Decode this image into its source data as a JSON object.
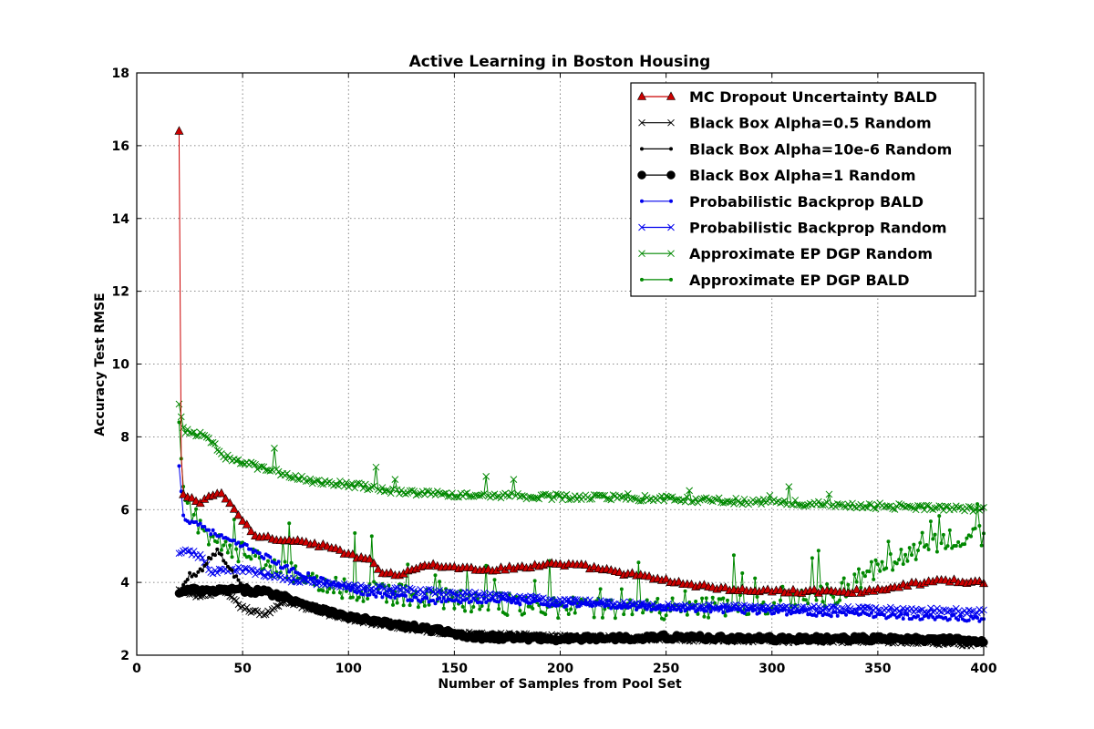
{
  "chart_data": {
    "type": "line",
    "title": "Active Learning in Boston Housing",
    "xlabel": "Number of Samples from Pool Set",
    "ylabel": "Accuracy Test RMSE",
    "xlim": [
      0,
      400
    ],
    "ylim": [
      2,
      18
    ],
    "xticks": [
      0,
      50,
      100,
      150,
      200,
      250,
      300,
      350,
      400
    ],
    "yticks": [
      2,
      4,
      6,
      8,
      10,
      12,
      14,
      16,
      18
    ],
    "grid": true,
    "legend_position": "top-right",
    "x_start": 20,
    "x_end": 400,
    "series": [
      {
        "name": "MC Dropout Uncertainty BALD",
        "color": "#cc0000",
        "marker": "triangle",
        "markerFill": "#cc0000",
        "keyframes": [
          [
            20,
            16.4
          ],
          [
            21,
            7.5
          ],
          [
            22,
            6.4
          ],
          [
            25,
            6.3
          ],
          [
            30,
            6.2
          ],
          [
            35,
            6.4
          ],
          [
            40,
            6.4
          ],
          [
            45,
            6.1
          ],
          [
            50,
            5.7
          ],
          [
            55,
            5.3
          ],
          [
            60,
            5.25
          ],
          [
            80,
            5.1
          ],
          [
            95,
            4.9
          ],
          [
            100,
            4.75
          ],
          [
            110,
            4.6
          ],
          [
            115,
            4.3
          ],
          [
            125,
            4.2
          ],
          [
            135,
            4.5
          ],
          [
            150,
            4.4
          ],
          [
            170,
            4.35
          ],
          [
            195,
            4.5
          ],
          [
            210,
            4.45
          ],
          [
            225,
            4.3
          ],
          [
            240,
            4.15
          ],
          [
            260,
            3.95
          ],
          [
            280,
            3.8
          ],
          [
            300,
            3.75
          ],
          [
            320,
            3.75
          ],
          [
            345,
            3.75
          ],
          [
            360,
            3.9
          ],
          [
            380,
            4.05
          ],
          [
            400,
            4.0
          ]
        ],
        "noise": 0.05
      },
      {
        "name": "Black Box Alpha=0.5 Random",
        "color": "#000000",
        "marker": "x",
        "markerFill": "#000000",
        "keyframes": [
          [
            20,
            3.8
          ],
          [
            25,
            3.7
          ],
          [
            30,
            3.6
          ],
          [
            40,
            3.8
          ],
          [
            50,
            3.3
          ],
          [
            60,
            3.1
          ],
          [
            70,
            3.5
          ],
          [
            80,
            3.3
          ],
          [
            100,
            3.0
          ],
          [
            120,
            2.8
          ],
          [
            150,
            2.6
          ],
          [
            200,
            2.5
          ],
          [
            250,
            2.45
          ],
          [
            300,
            2.4
          ],
          [
            350,
            2.4
          ],
          [
            400,
            2.3
          ]
        ],
        "noise": 0.06
      },
      {
        "name": "Black Box Alpha=10e-6 Random",
        "color": "#000000",
        "marker": "dot",
        "markerFill": "#000000",
        "keyframes": [
          [
            20,
            3.7
          ],
          [
            25,
            4.2
          ],
          [
            30,
            4.3
          ],
          [
            38,
            4.9
          ],
          [
            42,
            4.5
          ],
          [
            50,
            3.9
          ],
          [
            60,
            3.7
          ],
          [
            70,
            3.6
          ],
          [
            80,
            3.4
          ],
          [
            100,
            3.1
          ],
          [
            120,
            2.9
          ],
          [
            150,
            2.6
          ],
          [
            200,
            2.5
          ],
          [
            250,
            2.5
          ],
          [
            300,
            2.45
          ],
          [
            350,
            2.45
          ],
          [
            400,
            2.4
          ]
        ],
        "noise": 0.08
      },
      {
        "name": "Black Box Alpha=1 Random",
        "color": "#000000",
        "marker": "circle",
        "markerFill": "#000000",
        "keyframes": [
          [
            20,
            3.7
          ],
          [
            25,
            3.8
          ],
          [
            35,
            3.75
          ],
          [
            45,
            3.8
          ],
          [
            60,
            3.75
          ],
          [
            70,
            3.6
          ],
          [
            80,
            3.4
          ],
          [
            90,
            3.2
          ],
          [
            100,
            3.05
          ],
          [
            120,
            2.85
          ],
          [
            140,
            2.7
          ],
          [
            160,
            2.5
          ],
          [
            200,
            2.45
          ],
          [
            250,
            2.5
          ],
          [
            300,
            2.45
          ],
          [
            350,
            2.45
          ],
          [
            400,
            2.4
          ]
        ],
        "noise": 0.07
      },
      {
        "name": "Probabilistic Backprop BALD",
        "color": "#0000ee",
        "marker": "dot",
        "markerFill": "#0000ee",
        "keyframes": [
          [
            20,
            7.2
          ],
          [
            22,
            5.8
          ],
          [
            25,
            5.7
          ],
          [
            30,
            5.6
          ],
          [
            35,
            5.4
          ],
          [
            45,
            5.1
          ],
          [
            55,
            4.9
          ],
          [
            70,
            4.4
          ],
          [
            90,
            4.0
          ],
          [
            110,
            3.7
          ],
          [
            140,
            3.5
          ],
          [
            170,
            3.5
          ],
          [
            200,
            3.4
          ],
          [
            250,
            3.3
          ],
          [
            300,
            3.2
          ],
          [
            350,
            3.1
          ],
          [
            400,
            3.0
          ]
        ],
        "noise": 0.08
      },
      {
        "name": "Probabilistic Backprop Random",
        "color": "#0000ee",
        "marker": "x",
        "markerFill": "#0000ee",
        "keyframes": [
          [
            20,
            4.8
          ],
          [
            25,
            4.85
          ],
          [
            30,
            4.7
          ],
          [
            35,
            4.3
          ],
          [
            50,
            4.35
          ],
          [
            70,
            4.1
          ],
          [
            90,
            3.95
          ],
          [
            110,
            3.85
          ],
          [
            150,
            3.7
          ],
          [
            200,
            3.5
          ],
          [
            250,
            3.35
          ],
          [
            300,
            3.3
          ],
          [
            350,
            3.25
          ],
          [
            400,
            3.2
          ]
        ],
        "noise": 0.07
      },
      {
        "name": "Approximate EP DGP Random",
        "color": "#008800",
        "marker": "x",
        "markerFill": "#008800",
        "keyframes": [
          [
            20,
            8.9
          ],
          [
            22,
            8.2
          ],
          [
            28,
            8.1
          ],
          [
            35,
            7.9
          ],
          [
            40,
            7.5
          ],
          [
            50,
            7.3
          ],
          [
            60,
            7.1
          ],
          [
            70,
            7.0
          ],
          [
            80,
            6.8
          ],
          [
            100,
            6.7
          ],
          [
            120,
            6.5
          ],
          [
            150,
            6.4
          ],
          [
            200,
            6.35
          ],
          [
            250,
            6.3
          ],
          [
            300,
            6.2
          ],
          [
            350,
            6.1
          ],
          [
            400,
            6.0
          ]
        ],
        "noise": 0.08
      },
      {
        "name": "Approximate EP DGP BALD",
        "color": "#008800",
        "marker": "dot",
        "markerFill": "#008800",
        "keyframes": [
          [
            20,
            8.4
          ],
          [
            22,
            6.4
          ],
          [
            30,
            5.5
          ],
          [
            40,
            5.0
          ],
          [
            50,
            4.8
          ],
          [
            70,
            4.3
          ],
          [
            100,
            3.8
          ],
          [
            150,
            3.5
          ],
          [
            200,
            3.3
          ],
          [
            250,
            3.25
          ],
          [
            300,
            3.4
          ],
          [
            330,
            3.7
          ],
          [
            345,
            4.2
          ],
          [
            360,
            4.7
          ],
          [
            380,
            5.1
          ],
          [
            400,
            5.3
          ]
        ],
        "noise": 0.3
      }
    ]
  }
}
